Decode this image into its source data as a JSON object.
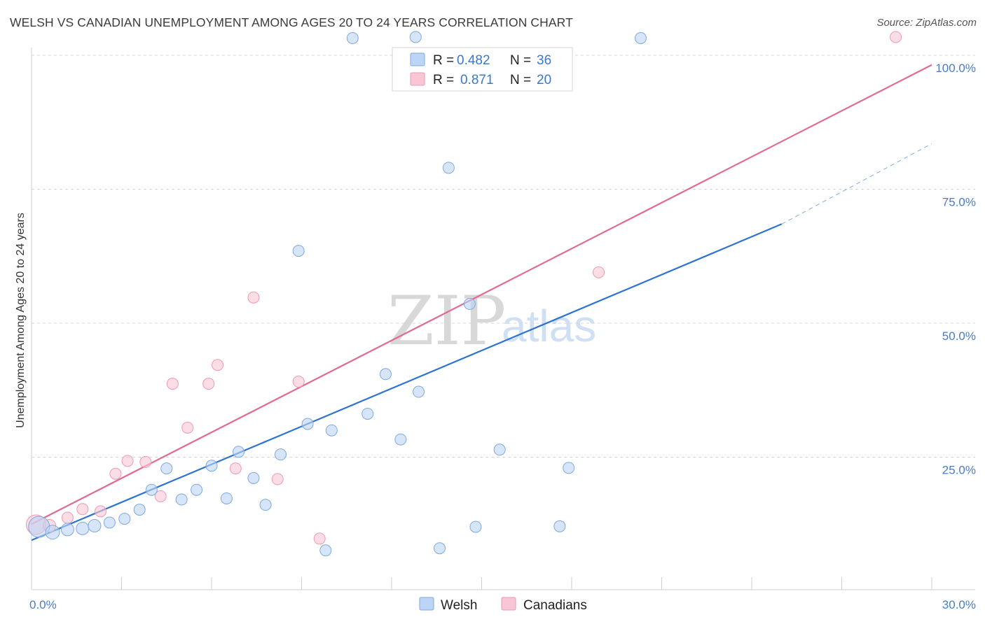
{
  "header": {
    "title": "WELSH VS CANADIAN UNEMPLOYMENT AMONG AGES 20 TO 24 YEARS CORRELATION CHART",
    "source": "Source: ZipAtlas.com"
  },
  "watermark": {
    "zip": "ZIP",
    "atlas": "atlas"
  },
  "legend": {
    "welsh": {
      "r_label": "R =",
      "r_value": "0.482",
      "n_label": "N =",
      "n_value": "36"
    },
    "canadians": {
      "r_label": "R =",
      "r_value": "0.871",
      "n_label": "N =",
      "n_value": "20"
    }
  },
  "bottom_legend": {
    "welsh": "Welsh",
    "canadians": "Canadians"
  },
  "colors": {
    "welsh_fill": "#bcd4f5",
    "welsh_stroke": "#7fa8e0",
    "welsh_line": "#2c74d0",
    "canadians_fill": "#f9c6d6",
    "canadians_stroke": "#ec9ab4",
    "canadians_line": "#e06a93",
    "grid": "#d6d6d6",
    "axis_label": "#4a7cc9"
  },
  "chart_data": {
    "type": "scatter",
    "title": "WELSH VS CANADIAN UNEMPLOYMENT AMONG AGES 20 TO 24 YEARS CORRELATION CHART",
    "xlabel": "",
    "ylabel": "Unemployment Among Ages 20 to 24 years",
    "xlim": [
      0,
      30
    ],
    "ylim": [
      0,
      100
    ],
    "x_tick_labels": [
      "0.0%",
      "30.0%"
    ],
    "y_ticks": [
      25,
      50,
      75,
      100
    ],
    "y_tick_labels": [
      "25.0%",
      "50.0%",
      "75.0%",
      "100.0%"
    ],
    "series": [
      {
        "name": "Welsh",
        "r": 0.482,
        "n": 36,
        "trend": {
          "x": [
            0,
            25.0
          ],
          "y": [
            9.5,
            68.5
          ],
          "dashed_to": [
            30,
            83.5
          ]
        },
        "points": [
          {
            "x": 0.25,
            "y": 12.0,
            "size": 15
          },
          {
            "x": 0.7,
            "y": 11.0,
            "size": 10
          },
          {
            "x": 1.2,
            "y": 11.5,
            "size": 9
          },
          {
            "x": 1.7,
            "y": 11.7,
            "size": 9
          },
          {
            "x": 2.1,
            "y": 12.2,
            "size": 9
          },
          {
            "x": 2.6,
            "y": 12.8,
            "size": 8
          },
          {
            "x": 3.1,
            "y": 13.5,
            "size": 8
          },
          {
            "x": 3.6,
            "y": 15.2,
            "size": 8
          },
          {
            "x": 4.0,
            "y": 18.9,
            "size": 8
          },
          {
            "x": 4.5,
            "y": 22.9,
            "size": 8
          },
          {
            "x": 5.0,
            "y": 17.1,
            "size": 8
          },
          {
            "x": 5.5,
            "y": 18.9,
            "size": 8
          },
          {
            "x": 6.0,
            "y": 23.4,
            "size": 8
          },
          {
            "x": 6.5,
            "y": 17.3,
            "size": 8
          },
          {
            "x": 6.9,
            "y": 26.0,
            "size": 8
          },
          {
            "x": 7.4,
            "y": 21.1,
            "size": 8
          },
          {
            "x": 7.8,
            "y": 16.1,
            "size": 8
          },
          {
            "x": 8.3,
            "y": 25.5,
            "size": 8
          },
          {
            "x": 8.9,
            "y": 63.5,
            "size": 8
          },
          {
            "x": 9.2,
            "y": 31.2,
            "size": 8
          },
          {
            "x": 9.8,
            "y": 7.6,
            "size": 8
          },
          {
            "x": 10.0,
            "y": 30.0,
            "size": 8
          },
          {
            "x": 10.7,
            "y": 103.2,
            "size": 8
          },
          {
            "x": 11.2,
            "y": 33.1,
            "size": 8
          },
          {
            "x": 11.8,
            "y": 40.5,
            "size": 8
          },
          {
            "x": 12.3,
            "y": 28.3,
            "size": 8
          },
          {
            "x": 12.8,
            "y": 103.4,
            "size": 8
          },
          {
            "x": 12.9,
            "y": 37.2,
            "size": 8
          },
          {
            "x": 13.6,
            "y": 8.0,
            "size": 8
          },
          {
            "x": 13.9,
            "y": 79.0,
            "size": 8
          },
          {
            "x": 14.6,
            "y": 53.6,
            "size": 8
          },
          {
            "x": 14.8,
            "y": 12.0,
            "size": 8
          },
          {
            "x": 15.6,
            "y": 26.4,
            "size": 8
          },
          {
            "x": 17.6,
            "y": 12.1,
            "size": 8
          },
          {
            "x": 17.9,
            "y": 23.0,
            "size": 8
          },
          {
            "x": 20.3,
            "y": 103.2,
            "size": 8
          }
        ]
      },
      {
        "name": "Canadians",
        "r": 0.871,
        "n": 20,
        "trend": {
          "x": [
            0,
            30
          ],
          "y": [
            12.5,
            98.2
          ]
        },
        "points": [
          {
            "x": 0.15,
            "y": 12.4,
            "size": 14
          },
          {
            "x": 0.6,
            "y": 12.2,
            "size": 9
          },
          {
            "x": 1.2,
            "y": 13.7,
            "size": 8
          },
          {
            "x": 1.7,
            "y": 15.3,
            "size": 8
          },
          {
            "x": 2.3,
            "y": 14.9,
            "size": 8
          },
          {
            "x": 2.8,
            "y": 21.9,
            "size": 8
          },
          {
            "x": 3.2,
            "y": 24.3,
            "size": 8
          },
          {
            "x": 3.8,
            "y": 24.1,
            "size": 8
          },
          {
            "x": 4.3,
            "y": 17.7,
            "size": 8
          },
          {
            "x": 4.7,
            "y": 38.7,
            "size": 8
          },
          {
            "x": 5.2,
            "y": 30.5,
            "size": 8
          },
          {
            "x": 5.9,
            "y": 38.7,
            "size": 8
          },
          {
            "x": 6.2,
            "y": 42.2,
            "size": 8
          },
          {
            "x": 6.8,
            "y": 22.9,
            "size": 8
          },
          {
            "x": 7.4,
            "y": 54.8,
            "size": 8
          },
          {
            "x": 8.2,
            "y": 20.9,
            "size": 8
          },
          {
            "x": 8.9,
            "y": 39.1,
            "size": 8
          },
          {
            "x": 9.6,
            "y": 9.8,
            "size": 8
          },
          {
            "x": 18.9,
            "y": 59.5,
            "size": 8
          },
          {
            "x": 28.8,
            "y": 103.4,
            "size": 8
          }
        ]
      }
    ]
  }
}
